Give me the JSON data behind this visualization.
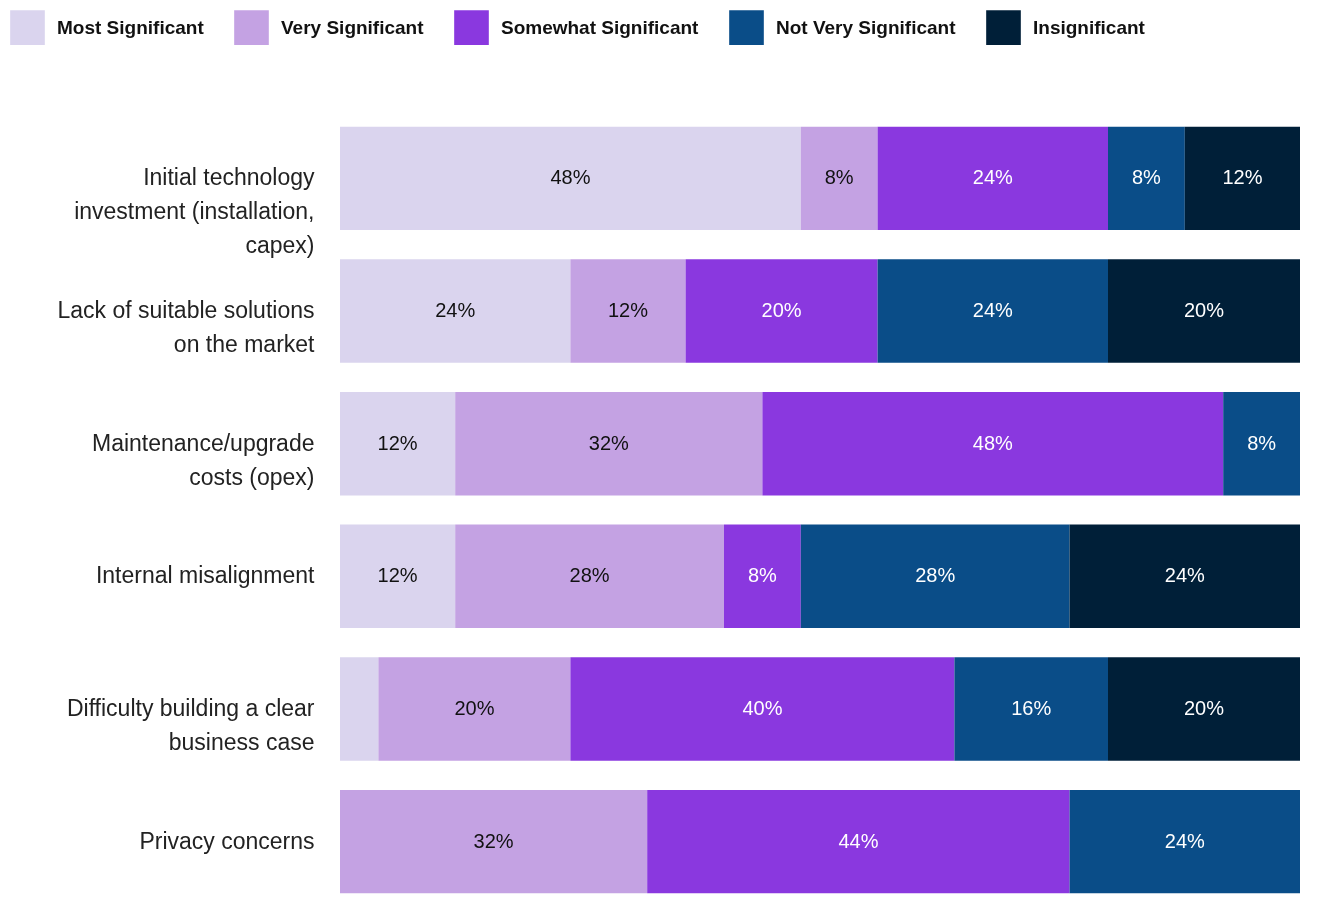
{
  "chart_data": {
    "type": "bar",
    "orientation": "horizontal",
    "stacked": true,
    "legend": "top",
    "categories": [
      "Initial technology investment (installation, capex)",
      "Lack of suitable solutions on the market",
      "Maintenance/upgrade costs (opex)",
      "Internal misalignment",
      "Difficulty building a clear business case",
      "Privacy concerns"
    ],
    "series": [
      {
        "name": "Most Significant",
        "color": "#dad4ee",
        "values": [
          48,
          24,
          12,
          12,
          4,
          null
        ],
        "value_labels": [
          "48%",
          "24%",
          "12%",
          "12%",
          null,
          null
        ]
      },
      {
        "name": "Very Significant",
        "color": "#c4a2e3",
        "values": [
          8,
          12,
          32,
          28,
          20,
          32
        ],
        "value_labels": [
          "8%",
          "12%",
          "32%",
          "28%",
          "20%",
          "32%"
        ]
      },
      {
        "name": "Somewhat Significant",
        "color": "#8a38df",
        "values": [
          24,
          20,
          48,
          8,
          40,
          44
        ],
        "value_labels": [
          "24%",
          "20%",
          "48%",
          "8%",
          "40%",
          "44%"
        ]
      },
      {
        "name": "Not Very Significant",
        "color": "#0a4d88",
        "values": [
          8,
          24,
          8,
          28,
          16,
          24
        ],
        "value_labels": [
          "8%",
          "24%",
          "8%",
          "28%",
          "16%",
          "24%"
        ]
      },
      {
        "name": "Insignificant",
        "color": "#001f38",
        "values": [
          12,
          20,
          null,
          24,
          20,
          null
        ],
        "value_labels": [
          "12%",
          "20%",
          null,
          "24%",
          "20%",
          null
        ]
      }
    ]
  }
}
